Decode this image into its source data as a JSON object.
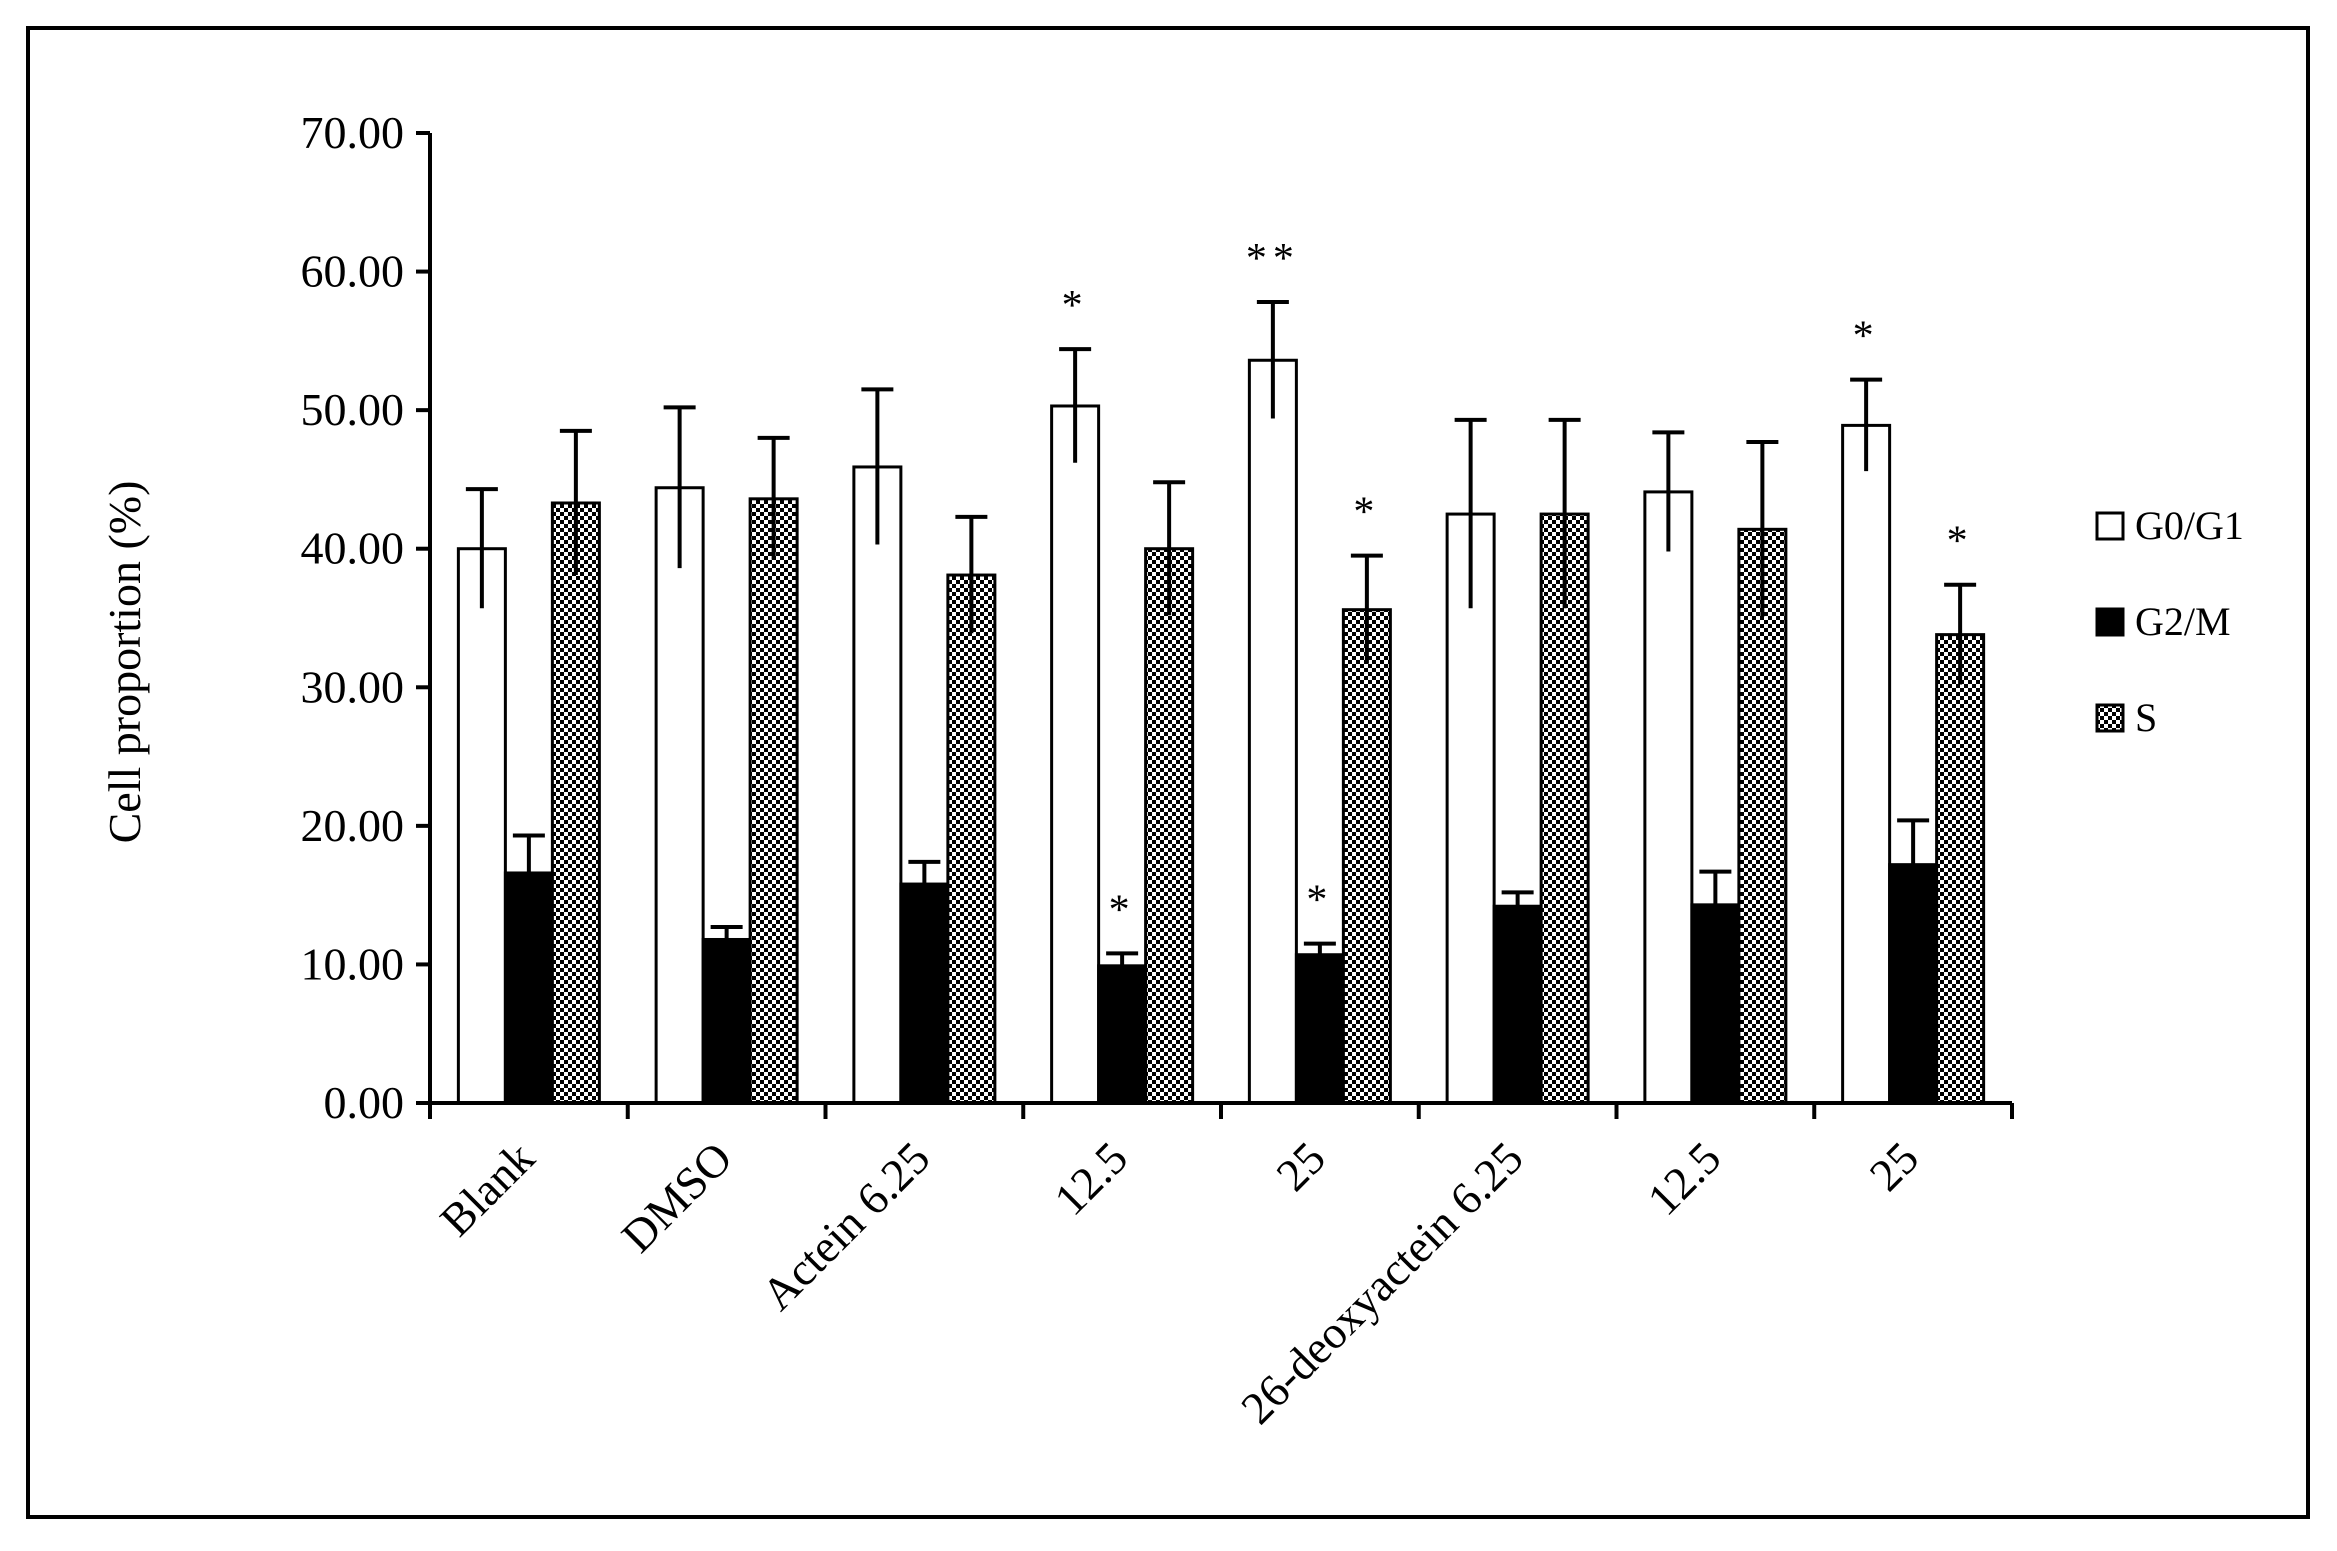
{
  "chart_data": {
    "type": "bar",
    "title": "",
    "xlabel": "",
    "ylabel": "Cell proportion (%)",
    "ylim": [
      0,
      70
    ],
    "yticks": [
      "0.00",
      "10.00",
      "20.00",
      "30.00",
      "40.00",
      "50.00",
      "60.00",
      "70.00"
    ],
    "categories": [
      "Blank",
      "DMSO",
      "Actein 6.25",
      "12.5",
      "25",
      "26-deoxyactein 6.25",
      "12.5",
      "25"
    ],
    "legend_position": "right",
    "series": [
      {
        "name": "G0/G1",
        "fill": "white",
        "values": [
          40.0,
          44.4,
          45.9,
          50.3,
          53.6,
          42.5,
          44.1,
          48.9
        ],
        "errors": [
          4.3,
          5.8,
          5.6,
          4.1,
          4.2,
          6.8,
          4.3,
          3.3
        ],
        "significance": [
          "",
          "",
          "",
          "*",
          "**",
          "",
          "",
          "*"
        ]
      },
      {
        "name": "G2/M",
        "fill": "black",
        "values": [
          16.6,
          11.8,
          15.8,
          9.9,
          10.7,
          14.2,
          14.3,
          17.2
        ],
        "errors": [
          2.7,
          0.9,
          1.6,
          0.9,
          0.8,
          1.0,
          2.4,
          3.2
        ],
        "significance": [
          "",
          "",
          "",
          "*",
          "*",
          "",
          "",
          ""
        ]
      },
      {
        "name": "S",
        "fill": "checkered",
        "values": [
          43.3,
          43.6,
          38.1,
          40.0,
          35.6,
          42.5,
          41.4,
          33.8
        ],
        "errors": [
          5.2,
          4.4,
          4.2,
          4.8,
          3.9,
          6.8,
          6.3,
          3.6
        ],
        "significance": [
          "",
          "",
          "",
          "",
          "*",
          "",
          "",
          "*"
        ]
      }
    ]
  }
}
